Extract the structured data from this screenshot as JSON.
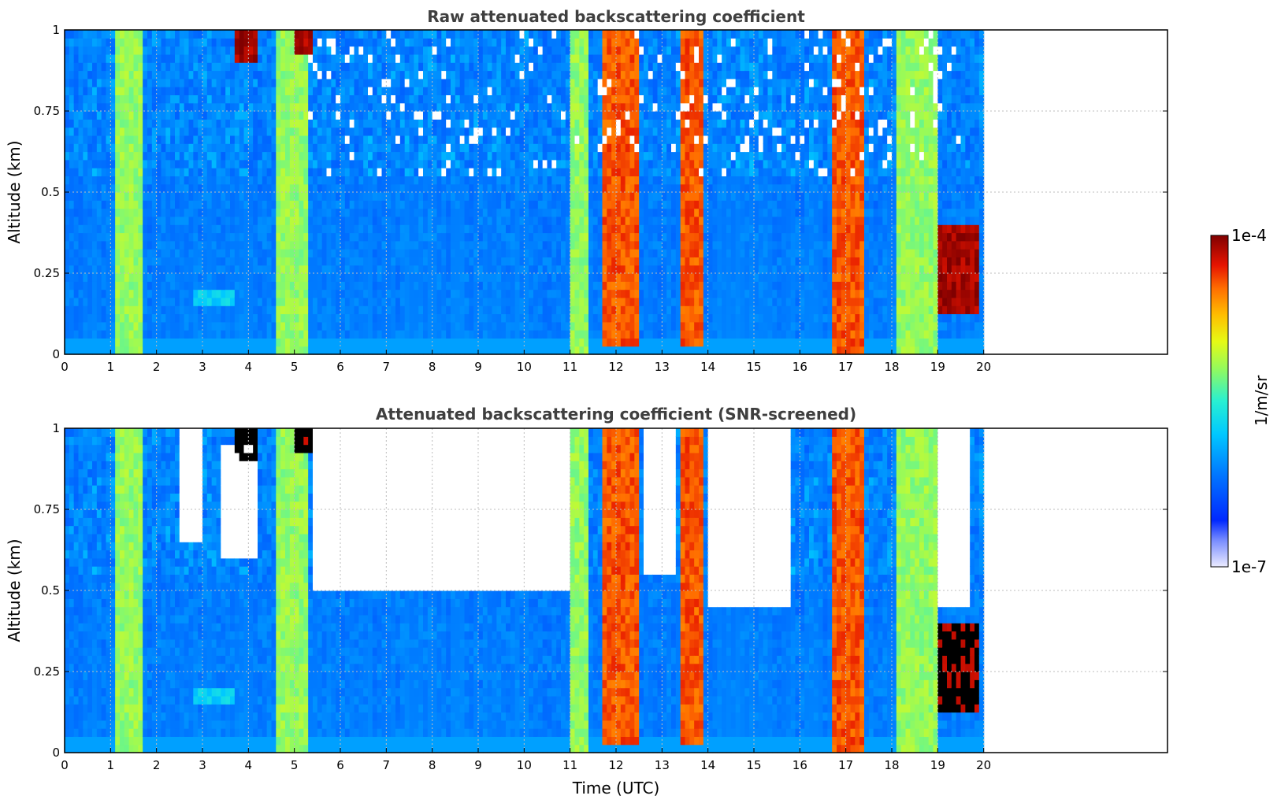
{
  "chart_data": [
    {
      "type": "heatmap",
      "title": "Raw attenuated backscattering coefficient",
      "xlabel": "",
      "ylabel": "Altitude (km)",
      "xlim": [
        0,
        24
      ],
      "ylim": [
        0,
        1
      ],
      "x_ticks": [
        "0",
        "1",
        "2",
        "3",
        "4",
        "5",
        "6",
        "7",
        "8",
        "9",
        "10",
        "11",
        "12",
        "13",
        "14",
        "15",
        "16",
        "17",
        "18",
        "19",
        "20"
      ],
      "y_ticks": [
        "0",
        "0.25",
        "0.5",
        "0.75",
        "1"
      ],
      "grid": true,
      "data_end_time": 20,
      "scale": "log",
      "vmin": 1e-07,
      "vmax": 0.0001,
      "features": [
        {
          "label": "boundary layer background",
          "t_start": 0,
          "t_end": 20,
          "alt_bottom": 0,
          "alt_top": 1,
          "level": "low"
        },
        {
          "label": "fog/haze column",
          "t_start": 1.1,
          "t_end": 1.7,
          "alt_bottom": 0,
          "alt_top": 1,
          "level": "medium"
        },
        {
          "label": "fog/haze column",
          "t_start": 4.6,
          "t_end": 5.3,
          "alt_bottom": 0,
          "alt_top": 1,
          "level": "medium"
        },
        {
          "label": "aerosol layer",
          "t_start": 2.8,
          "t_end": 3.7,
          "alt_bottom": 0.16,
          "alt_top": 0.21,
          "level": "medium-low"
        },
        {
          "label": "cloud top layer",
          "t_start": 3.7,
          "t_end": 4.2,
          "alt_bottom": 0.9,
          "alt_top": 1,
          "level": "high"
        },
        {
          "label": "cloud top layer",
          "t_start": 5.0,
          "t_end": 5.4,
          "alt_bottom": 0.92,
          "alt_top": 1,
          "level": "high"
        },
        {
          "label": "low cloud",
          "t_start": 11.0,
          "t_end": 11.4,
          "alt_bottom": 0,
          "alt_top": 1,
          "level": "medium"
        },
        {
          "label": "dense cloud",
          "t_start": 11.7,
          "t_end": 12.5,
          "alt_bottom": 0.02,
          "alt_top": 1,
          "level": "very high"
        },
        {
          "label": "dense cloud",
          "t_start": 13.4,
          "t_end": 13.9,
          "alt_bottom": 0.02,
          "alt_top": 1,
          "level": "very high"
        },
        {
          "label": "dense cloud",
          "t_start": 16.7,
          "t_end": 17.4,
          "alt_bottom": 0,
          "alt_top": 1,
          "level": "very high"
        },
        {
          "label": "mixed cloud",
          "t_start": 18.1,
          "t_end": 19.0,
          "alt_bottom": 0,
          "alt_top": 1,
          "level": "medium"
        },
        {
          "label": "descending cloud base",
          "t_start": 19.0,
          "t_end": 19.9,
          "alt_bottom": 0.12,
          "alt_top": 0.4,
          "level": "high"
        }
      ]
    },
    {
      "type": "heatmap",
      "title": "Attenuated backscattering coefficient (SNR-screened)",
      "xlabel": "Time (UTC)",
      "ylabel": "Altitude (km)",
      "xlim": [
        0,
        24
      ],
      "ylim": [
        0,
        1
      ],
      "x_ticks": [
        "0",
        "1",
        "2",
        "3",
        "4",
        "5",
        "6",
        "7",
        "8",
        "9",
        "10",
        "11",
        "12",
        "13",
        "14",
        "15",
        "16",
        "17",
        "18",
        "19",
        "20"
      ],
      "y_ticks": [
        "0",
        "0.25",
        "0.5",
        "0.75",
        "1"
      ],
      "grid": true,
      "data_end_time": 20,
      "scale": "log",
      "vmin": 1e-07,
      "vmax": 0.0001,
      "screened_out_regions": [
        {
          "t_start": 2.5,
          "t_end": 3.0,
          "alt_bottom": 0.65,
          "alt_top": 1
        },
        {
          "t_start": 3.4,
          "t_end": 4.2,
          "alt_bottom": 0.6,
          "alt_top": 0.95
        },
        {
          "t_start": 5.4,
          "t_end": 11.0,
          "alt_bottom": 0.5,
          "alt_top": 1
        },
        {
          "t_start": 12.6,
          "t_end": 13.3,
          "alt_bottom": 0.55,
          "alt_top": 1
        },
        {
          "t_start": 14.0,
          "t_end": 15.8,
          "alt_bottom": 0.45,
          "alt_top": 1
        },
        {
          "t_start": 19.0,
          "t_end": 19.7,
          "alt_bottom": 0.45,
          "alt_top": 1
        }
      ]
    }
  ],
  "colorbar": {
    "label": "1/m/sr",
    "max_label": "1e-4",
    "min_label": "1e-7"
  },
  "colors": {
    "axis": "#000000",
    "grid": "#bdbdbd",
    "title": "#3f3f3f",
    "screened": "#000000"
  }
}
